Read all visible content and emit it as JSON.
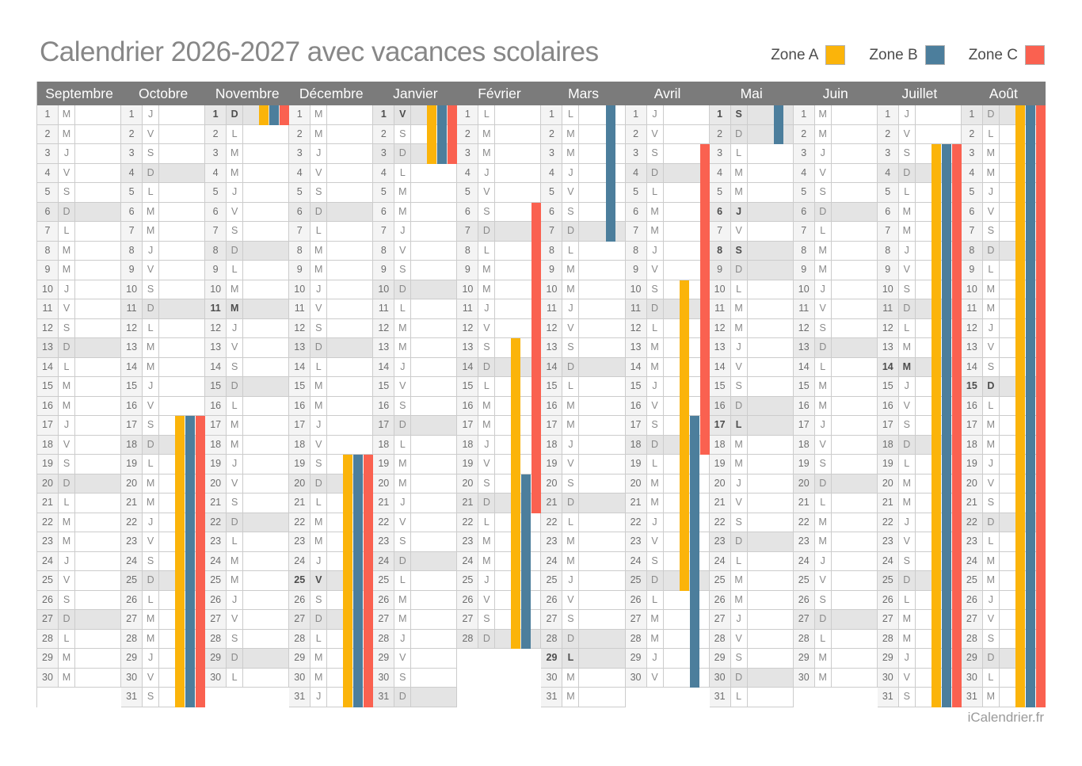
{
  "title": "Calendrier 2026-2027 avec vacances scolaires",
  "footer": "iCalendrier.fr",
  "legend": {
    "items": [
      {
        "label": "Zone A",
        "zone": "A",
        "color": "#FBB40A"
      },
      {
        "label": "Zone B",
        "zone": "B",
        "color": "#4C7E9C"
      },
      {
        "label": "Zone C",
        "zone": "C",
        "color": "#FA6150"
      }
    ]
  },
  "colors": {
    "header_bg": "#7B7B7B",
    "border": "#CCCCCC",
    "row_shaded": "#E4E4E4",
    "zone_a": "#FBB40A",
    "zone_b": "#4C7E9C",
    "zone_c": "#FA6150"
  },
  "sunday_letter": "D",
  "months": [
    {
      "name": "Septembre",
      "days": 30,
      "letters": [
        "M",
        "M",
        "J",
        "V",
        "S",
        "D",
        "L",
        "M",
        "M",
        "J",
        "V",
        "S",
        "D",
        "L",
        "M",
        "M",
        "J",
        "V",
        "S",
        "D",
        "L",
        "M",
        "M",
        "J",
        "V",
        "S",
        "D",
        "L",
        "M",
        "M"
      ],
      "holidays": [],
      "vacations": {
        "A": [],
        "B": [],
        "C": []
      }
    },
    {
      "name": "Octobre",
      "days": 31,
      "letters": [
        "J",
        "V",
        "S",
        "D",
        "L",
        "M",
        "M",
        "J",
        "V",
        "S",
        "D",
        "L",
        "M",
        "M",
        "J",
        "V",
        "S",
        "D",
        "L",
        "M",
        "M",
        "J",
        "V",
        "S",
        "D",
        "L",
        "M",
        "M",
        "J",
        "V",
        "S"
      ],
      "holidays": [],
      "vacations": {
        "A": [
          [
            17,
            31
          ]
        ],
        "B": [
          [
            17,
            31
          ]
        ],
        "C": [
          [
            17,
            31
          ]
        ]
      }
    },
    {
      "name": "Novembre",
      "days": 30,
      "letters": [
        "D",
        "L",
        "M",
        "M",
        "J",
        "V",
        "S",
        "D",
        "L",
        "M",
        "M",
        "J",
        "V",
        "S",
        "D",
        "L",
        "M",
        "M",
        "J",
        "V",
        "S",
        "D",
        "L",
        "M",
        "M",
        "J",
        "V",
        "S",
        "D",
        "L"
      ],
      "holidays": [
        1,
        11
      ],
      "vacations": {
        "A": [
          [
            1,
            1
          ]
        ],
        "B": [
          [
            1,
            1
          ]
        ],
        "C": [
          [
            1,
            1
          ]
        ]
      }
    },
    {
      "name": "Décembre",
      "days": 31,
      "letters": [
        "M",
        "M",
        "J",
        "V",
        "S",
        "D",
        "L",
        "M",
        "M",
        "J",
        "V",
        "S",
        "D",
        "L",
        "M",
        "M",
        "J",
        "V",
        "S",
        "D",
        "L",
        "M",
        "M",
        "J",
        "V",
        "S",
        "D",
        "L",
        "M",
        "M",
        "J"
      ],
      "holidays": [
        25
      ],
      "vacations": {
        "A": [
          [
            19,
            31
          ]
        ],
        "B": [
          [
            19,
            31
          ]
        ],
        "C": [
          [
            19,
            31
          ]
        ]
      }
    },
    {
      "name": "Janvier",
      "days": 31,
      "letters": [
        "V",
        "S",
        "D",
        "L",
        "M",
        "M",
        "J",
        "V",
        "S",
        "D",
        "L",
        "M",
        "M",
        "J",
        "V",
        "S",
        "D",
        "L",
        "M",
        "M",
        "J",
        "V",
        "S",
        "D",
        "L",
        "M",
        "M",
        "J",
        "V",
        "S",
        "D"
      ],
      "holidays": [
        1
      ],
      "vacations": {
        "A": [
          [
            1,
            3
          ]
        ],
        "B": [
          [
            1,
            3
          ]
        ],
        "C": [
          [
            1,
            3
          ]
        ]
      }
    },
    {
      "name": "Février",
      "days": 28,
      "letters": [
        "L",
        "M",
        "M",
        "J",
        "V",
        "S",
        "D",
        "L",
        "M",
        "M",
        "J",
        "V",
        "S",
        "D",
        "L",
        "M",
        "M",
        "J",
        "V",
        "S",
        "D",
        "L",
        "M",
        "M",
        "J",
        "V",
        "S",
        "D"
      ],
      "holidays": [],
      "vacations": {
        "A": [
          [
            13,
            28
          ]
        ],
        "B": [
          [
            20,
            28
          ]
        ],
        "C": [
          [
            6,
            21
          ]
        ]
      }
    },
    {
      "name": "Mars",
      "days": 31,
      "letters": [
        "L",
        "M",
        "M",
        "J",
        "V",
        "S",
        "D",
        "L",
        "M",
        "M",
        "J",
        "V",
        "S",
        "D",
        "L",
        "M",
        "M",
        "J",
        "V",
        "S",
        "D",
        "L",
        "M",
        "M",
        "J",
        "V",
        "S",
        "D",
        "L",
        "M",
        "M"
      ],
      "holidays": [
        29
      ],
      "vacations": {
        "A": [],
        "B": [
          [
            1,
            7
          ]
        ],
        "C": []
      }
    },
    {
      "name": "Avril",
      "days": 30,
      "letters": [
        "J",
        "V",
        "S",
        "D",
        "L",
        "M",
        "M",
        "J",
        "V",
        "S",
        "D",
        "L",
        "M",
        "M",
        "J",
        "V",
        "S",
        "D",
        "L",
        "M",
        "M",
        "J",
        "V",
        "S",
        "D",
        "L",
        "M",
        "M",
        "J",
        "V"
      ],
      "holidays": [],
      "vacations": {
        "A": [
          [
            10,
            25
          ]
        ],
        "B": [
          [
            17,
            30
          ]
        ],
        "C": [
          [
            3,
            18
          ]
        ]
      }
    },
    {
      "name": "Mai",
      "days": 31,
      "letters": [
        "S",
        "D",
        "L",
        "M",
        "M",
        "J",
        "V",
        "S",
        "D",
        "L",
        "M",
        "M",
        "J",
        "V",
        "S",
        "D",
        "L",
        "M",
        "M",
        "J",
        "V",
        "S",
        "D",
        "L",
        "M",
        "M",
        "J",
        "V",
        "S",
        "D",
        "L"
      ],
      "holidays": [
        1,
        6,
        8,
        17
      ],
      "vacations": {
        "A": [],
        "B": [
          [
            1,
            2
          ]
        ],
        "C": []
      }
    },
    {
      "name": "Juin",
      "days": 30,
      "letters": [
        "M",
        "M",
        "J",
        "V",
        "S",
        "D",
        "L",
        "M",
        "M",
        "J",
        "V",
        "S",
        "D",
        "L",
        "M",
        "M",
        "J",
        "V",
        "S",
        "D",
        "L",
        "M",
        "M",
        "J",
        "V",
        "S",
        "D",
        "L",
        "M",
        "M"
      ],
      "holidays": [],
      "vacations": {
        "A": [],
        "B": [],
        "C": []
      }
    },
    {
      "name": "Juillet",
      "days": 31,
      "letters": [
        "J",
        "V",
        "S",
        "D",
        "L",
        "M",
        "M",
        "J",
        "V",
        "S",
        "D",
        "L",
        "M",
        "M",
        "J",
        "V",
        "S",
        "D",
        "L",
        "M",
        "M",
        "J",
        "V",
        "S",
        "D",
        "L",
        "M",
        "M",
        "J",
        "V",
        "S"
      ],
      "holidays": [
        14
      ],
      "vacations": {
        "A": [
          [
            3,
            31
          ]
        ],
        "B": [
          [
            3,
            31
          ]
        ],
        "C": [
          [
            3,
            31
          ]
        ]
      }
    },
    {
      "name": "Août",
      "days": 31,
      "letters": [
        "D",
        "L",
        "M",
        "M",
        "J",
        "V",
        "S",
        "D",
        "L",
        "M",
        "M",
        "J",
        "V",
        "S",
        "D",
        "L",
        "M",
        "M",
        "J",
        "V",
        "S",
        "D",
        "L",
        "M",
        "M",
        "J",
        "V",
        "S",
        "D",
        "L",
        "M"
      ],
      "holidays": [
        15
      ],
      "vacations": {
        "A": [
          [
            1,
            31
          ]
        ],
        "B": [
          [
            1,
            31
          ]
        ],
        "C": [
          [
            1,
            31
          ]
        ]
      }
    }
  ]
}
